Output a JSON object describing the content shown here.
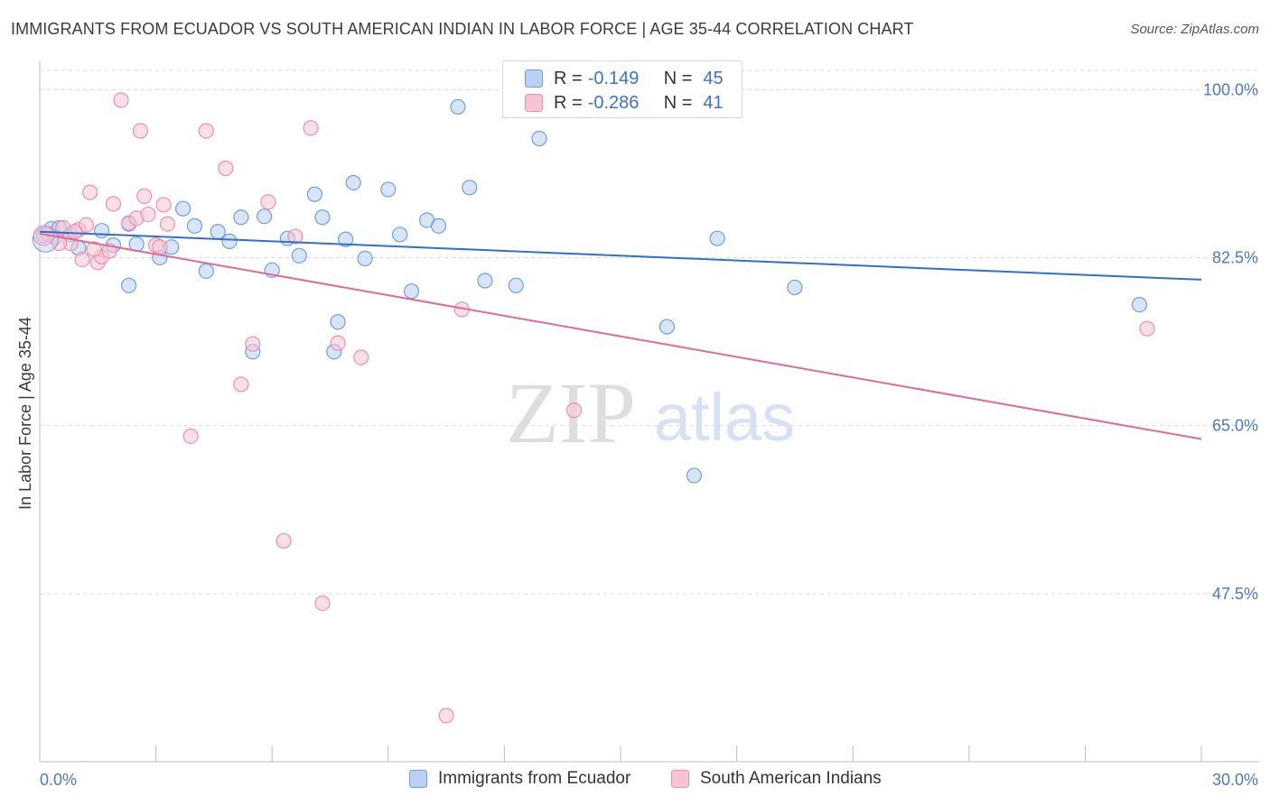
{
  "header": {
    "title": "IMMIGRANTS FROM ECUADOR VS SOUTH AMERICAN INDIAN IN LABOR FORCE | AGE 35-44 CORRELATION CHART",
    "source": "Source: ZipAtlas.com"
  },
  "watermark": {
    "zip": "ZIP",
    "atlas": "atlas"
  },
  "legend": {
    "rows": [
      {
        "r_label": "R =",
        "r_value": "-0.149",
        "n_label": "N =",
        "n_value": "45"
      },
      {
        "r_label": "R =",
        "r_value": "-0.286",
        "n_label": "N =",
        "n_value": "41"
      }
    ]
  },
  "colors": {
    "blue_fill": "#b8d0f4",
    "blue_stroke": "#6f9ee0",
    "blue_line": "#2f6fd0",
    "pink_fill": "#f8c4d4",
    "pink_stroke": "#ec8fb0",
    "pink_line": "#e06a96",
    "tick_text": "#4a78c8",
    "grid": "#d9d9d9"
  },
  "chart_data": {
    "type": "scatter",
    "title": "IMMIGRANTS FROM ECUADOR VS SOUTH AMERICAN INDIAN IN LABOR FORCE | AGE 35-44 CORRELATION CHART",
    "xlabel": "",
    "ylabel": "In Labor Force | Age 35-44",
    "xlim": [
      0,
      30
    ],
    "ylim": [
      30,
      102
    ],
    "x_tick_labels": [
      "0.0%",
      "30.0%"
    ],
    "y_ticks": [
      100,
      82.5,
      65,
      47.5
    ],
    "y_tick_labels": [
      "100.0%",
      "82.5%",
      "65.0%",
      "47.5%"
    ],
    "grid": true,
    "legend_position": "bottom",
    "series": [
      {
        "name": "Immigrants from Ecuador",
        "color": "#b8d0f4",
        "trend": {
          "x": [
            0,
            30
          ],
          "y": [
            85.2,
            80.2
          ]
        },
        "points": [
          [
            0.1,
            84.8
          ],
          [
            0.3,
            85.5
          ],
          [
            0.5,
            85.6
          ],
          [
            0.8,
            84.9
          ],
          [
            1.0,
            83.5
          ],
          [
            1.6,
            85.3
          ],
          [
            1.9,
            83.8
          ],
          [
            2.3,
            79.6
          ],
          [
            2.3,
            86.0
          ],
          [
            2.5,
            83.9
          ],
          [
            3.1,
            82.5
          ],
          [
            3.4,
            83.6
          ],
          [
            3.7,
            87.6
          ],
          [
            4.0,
            85.8
          ],
          [
            4.3,
            81.1
          ],
          [
            4.6,
            85.2
          ],
          [
            4.9,
            84.2
          ],
          [
            5.2,
            86.7
          ],
          [
            5.8,
            86.8
          ],
          [
            6.0,
            81.2
          ],
          [
            6.4,
            84.5
          ],
          [
            6.7,
            82.7
          ],
          [
            7.1,
            89.1
          ],
          [
            7.3,
            86.7
          ],
          [
            7.7,
            75.8
          ],
          [
            7.9,
            84.4
          ],
          [
            8.1,
            90.3
          ],
          [
            8.4,
            82.4
          ],
          [
            9.0,
            89.6
          ],
          [
            9.3,
            84.9
          ],
          [
            9.6,
            79.0
          ],
          [
            10.0,
            86.4
          ],
          [
            10.3,
            85.8
          ],
          [
            10.8,
            98.2
          ],
          [
            11.1,
            89.8
          ],
          [
            11.5,
            80.1
          ],
          [
            12.3,
            79.6
          ],
          [
            12.9,
            94.9
          ],
          [
            16.2,
            75.3
          ],
          [
            16.9,
            59.8
          ],
          [
            17.5,
            84.5
          ],
          [
            19.5,
            79.4
          ],
          [
            28.4,
            77.6
          ],
          [
            7.6,
            72.7
          ],
          [
            5.5,
            72.7
          ]
        ]
      },
      {
        "name": "South American Indians",
        "color": "#f8c4d4",
        "trend": {
          "x": [
            0,
            30
          ],
          "y": [
            85.0,
            63.6
          ]
        },
        "points": [
          [
            0.2,
            85.0
          ],
          [
            0.4,
            84.6
          ],
          [
            0.6,
            85.6
          ],
          [
            0.8,
            84.0
          ],
          [
            1.0,
            85.4
          ],
          [
            1.1,
            82.3
          ],
          [
            1.2,
            85.9
          ],
          [
            1.3,
            89.3
          ],
          [
            1.5,
            82.0
          ],
          [
            1.6,
            82.6
          ],
          [
            1.8,
            83.2
          ],
          [
            1.9,
            88.1
          ],
          [
            2.1,
            98.9
          ],
          [
            2.3,
            86.1
          ],
          [
            2.5,
            86.6
          ],
          [
            2.6,
            95.7
          ],
          [
            2.7,
            88.9
          ],
          [
            2.8,
            87.0
          ],
          [
            3.0,
            83.8
          ],
          [
            3.1,
            83.6
          ],
          [
            3.2,
            88.0
          ],
          [
            3.3,
            86.0
          ],
          [
            3.9,
            63.9
          ],
          [
            4.3,
            95.7
          ],
          [
            4.8,
            91.8
          ],
          [
            5.2,
            69.3
          ],
          [
            5.5,
            73.5
          ],
          [
            5.9,
            88.3
          ],
          [
            6.3,
            53.0
          ],
          [
            6.6,
            84.7
          ],
          [
            7.0,
            96.0
          ],
          [
            7.3,
            46.5
          ],
          [
            7.7,
            73.6
          ],
          [
            8.3,
            72.1
          ],
          [
            10.5,
            34.8
          ],
          [
            10.9,
            77.1
          ],
          [
            13.8,
            66.6
          ],
          [
            28.6,
            75.1
          ],
          [
            1.4,
            83.4
          ],
          [
            0.9,
            85.2
          ],
          [
            0.5,
            84.0
          ]
        ]
      }
    ]
  },
  "bottom_legend": {
    "items": [
      "Immigrants from Ecuador",
      "South American Indians"
    ]
  }
}
